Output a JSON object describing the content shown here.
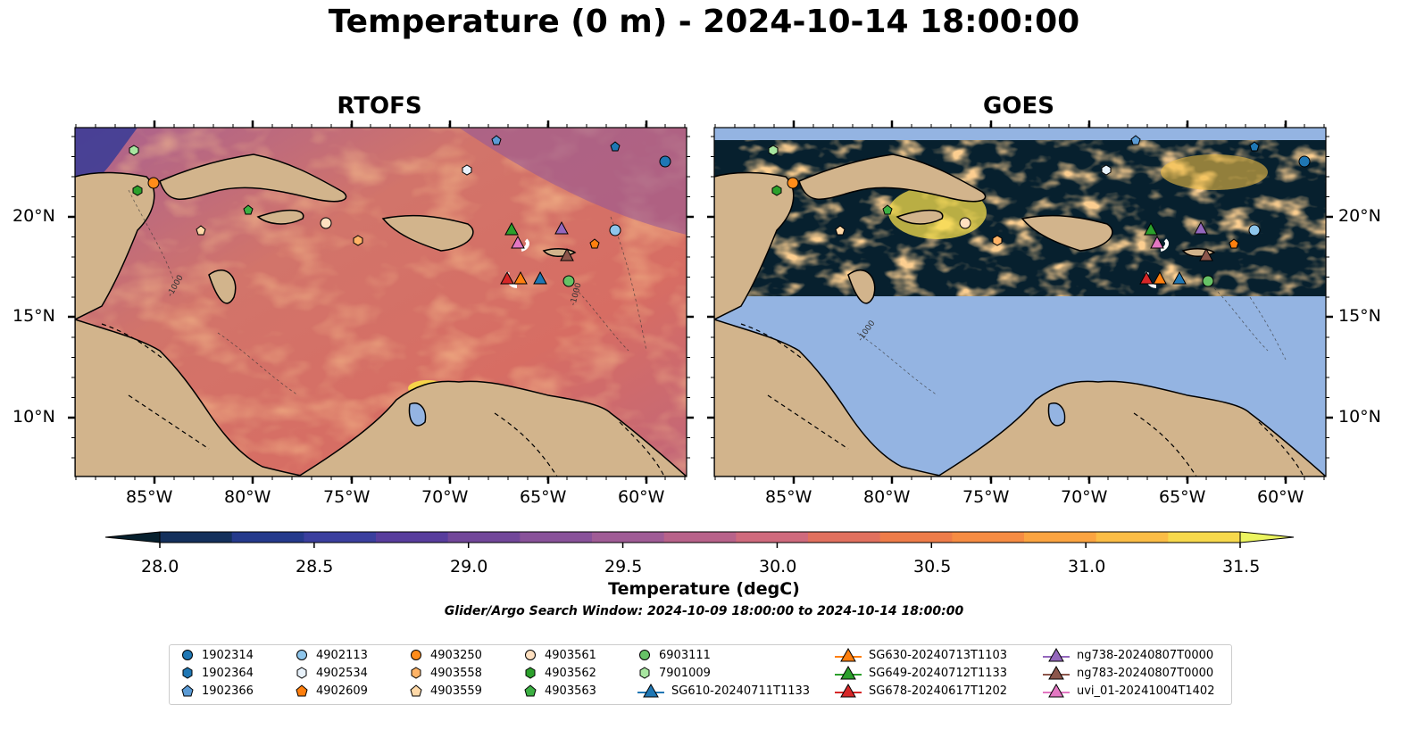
{
  "title": "Temperature (0 m) - 2024-10-14 18:00:00",
  "panels": [
    {
      "title": "RTOFS"
    },
    {
      "title": "GOES"
    }
  ],
  "axes": {
    "lon_ticks": [
      "85°W",
      "80°W",
      "75°W",
      "70°W",
      "65°W",
      "60°W"
    ],
    "lat_ticks": [
      "20°N",
      "15°N",
      "10°N"
    ]
  },
  "colorbar": {
    "label": "Temperature (degC)",
    "range": [
      28.0,
      31.5
    ],
    "ticks": [
      "28.0",
      "28.5",
      "29.0",
      "29.5",
      "30.0",
      "30.5",
      "31.0",
      "31.5"
    ],
    "colors": [
      "#07202e",
      "#14305c",
      "#253a8c",
      "#3b3f9e",
      "#583d9d",
      "#72479a",
      "#89529a",
      "#a05c96",
      "#b8628a",
      "#cf6a7d",
      "#e1705e",
      "#ee7c49",
      "#f68c43",
      "#fba441",
      "#fbbd46",
      "#f7d94c",
      "#ecf55f"
    ]
  },
  "search_window": "Glider/Argo Search Window: 2024-10-09 18:00:00 to 2024-10-14 18:00:00",
  "contour_label": "-1000",
  "colors": {
    "land": "#d2b48c",
    "nodata": "#94b4e2",
    "sst_ocean": "#e0783f"
  },
  "legend": {
    "columns": [
      [
        {
          "label": "1902314",
          "marker": "circle",
          "color": "#1f77b4"
        },
        {
          "label": "1902364",
          "marker": "hexagon",
          "color": "#1f77b4"
        },
        {
          "label": "1902366",
          "marker": "pentagon",
          "color": "#5b9bd5"
        }
      ],
      [
        {
          "label": "4902113",
          "marker": "circle",
          "color": "#8ec6ec"
        },
        {
          "label": "4902534",
          "marker": "hexagon",
          "color": "#e8f2fb"
        },
        {
          "label": "4902609",
          "marker": "pentagon",
          "color": "#ff7f0e"
        }
      ],
      [
        {
          "label": "4903250",
          "marker": "circle",
          "color": "#ff8c1a"
        },
        {
          "label": "4903558",
          "marker": "hexagon",
          "color": "#ffb366"
        },
        {
          "label": "4903559",
          "marker": "pentagon",
          "color": "#ffd9a8"
        }
      ],
      [
        {
          "label": "4903561",
          "marker": "circle",
          "color": "#ffe0c0"
        },
        {
          "label": "4903562",
          "marker": "hexagon",
          "color": "#2ca02c"
        },
        {
          "label": "4903563",
          "marker": "pentagon",
          "color": "#3cb043"
        }
      ],
      [
        {
          "label": "6903111",
          "marker": "circle",
          "color": "#66c266"
        },
        {
          "label": "7901009",
          "marker": "hexagon",
          "color": "#a8e6a0"
        },
        {
          "label": "SG610-20240711T1133",
          "marker": "triangle-line",
          "color": "#1f77b4"
        }
      ],
      [
        {
          "label": "SG630-20240713T1103",
          "marker": "triangle-line",
          "color": "#ff7f0e"
        },
        {
          "label": "SG649-20240712T1133",
          "marker": "triangle-line",
          "color": "#2ca02c"
        },
        {
          "label": "SG678-20240617T1202",
          "marker": "triangle-line",
          "color": "#d62728"
        }
      ],
      [
        {
          "label": "ng738-20240807T0000",
          "marker": "triangle-line",
          "color": "#9467bd"
        },
        {
          "label": "ng783-20240807T0000",
          "marker": "triangle-line",
          "color": "#8c564b"
        },
        {
          "label": "uvi_01-20241004T1402",
          "marker": "triangle-line",
          "color": "#e377c2"
        }
      ]
    ]
  }
}
